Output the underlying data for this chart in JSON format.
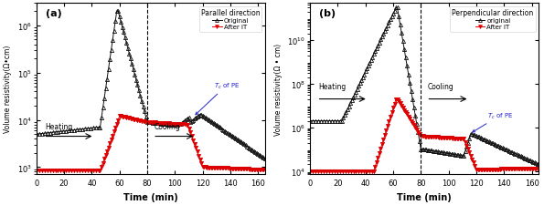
{
  "panel_a": {
    "title": "Parallel direction",
    "ylabel": "Volume resistivity(Ω•cm)",
    "xlabel": "Time (min)",
    "label_a": "(a)",
    "legend_orig": "Original",
    "legend_after": "After IT",
    "dashed_x": 80,
    "ylim_low": 700,
    "ylim_high": 3000000,
    "xlim": [
      0,
      165
    ],
    "yticks": [
      1000,
      10000,
      100000,
      1000000
    ],
    "xticks": [
      0,
      20,
      40,
      60,
      80,
      100,
      120,
      140,
      160
    ],
    "orig_color": "#111111",
    "after_color": "#dd0000"
  },
  "panel_b": {
    "title": "Perpendicular direction",
    "ylabel": "Volume resistivity(Ω • cm)",
    "xlabel": "Time (min)",
    "label_b": "(b)",
    "legend_orig": "original",
    "legend_after": "After IT",
    "dashed_x": 80,
    "ylim_low": 7000,
    "ylim_high": 500000000000.0,
    "xlim": [
      0,
      165
    ],
    "yticks": [
      10000,
      1000000,
      100000000,
      10000000000
    ],
    "xticks": [
      0,
      20,
      40,
      60,
      80,
      100,
      120,
      140,
      160
    ],
    "orig_color": "#111111",
    "after_color": "#dd0000"
  }
}
